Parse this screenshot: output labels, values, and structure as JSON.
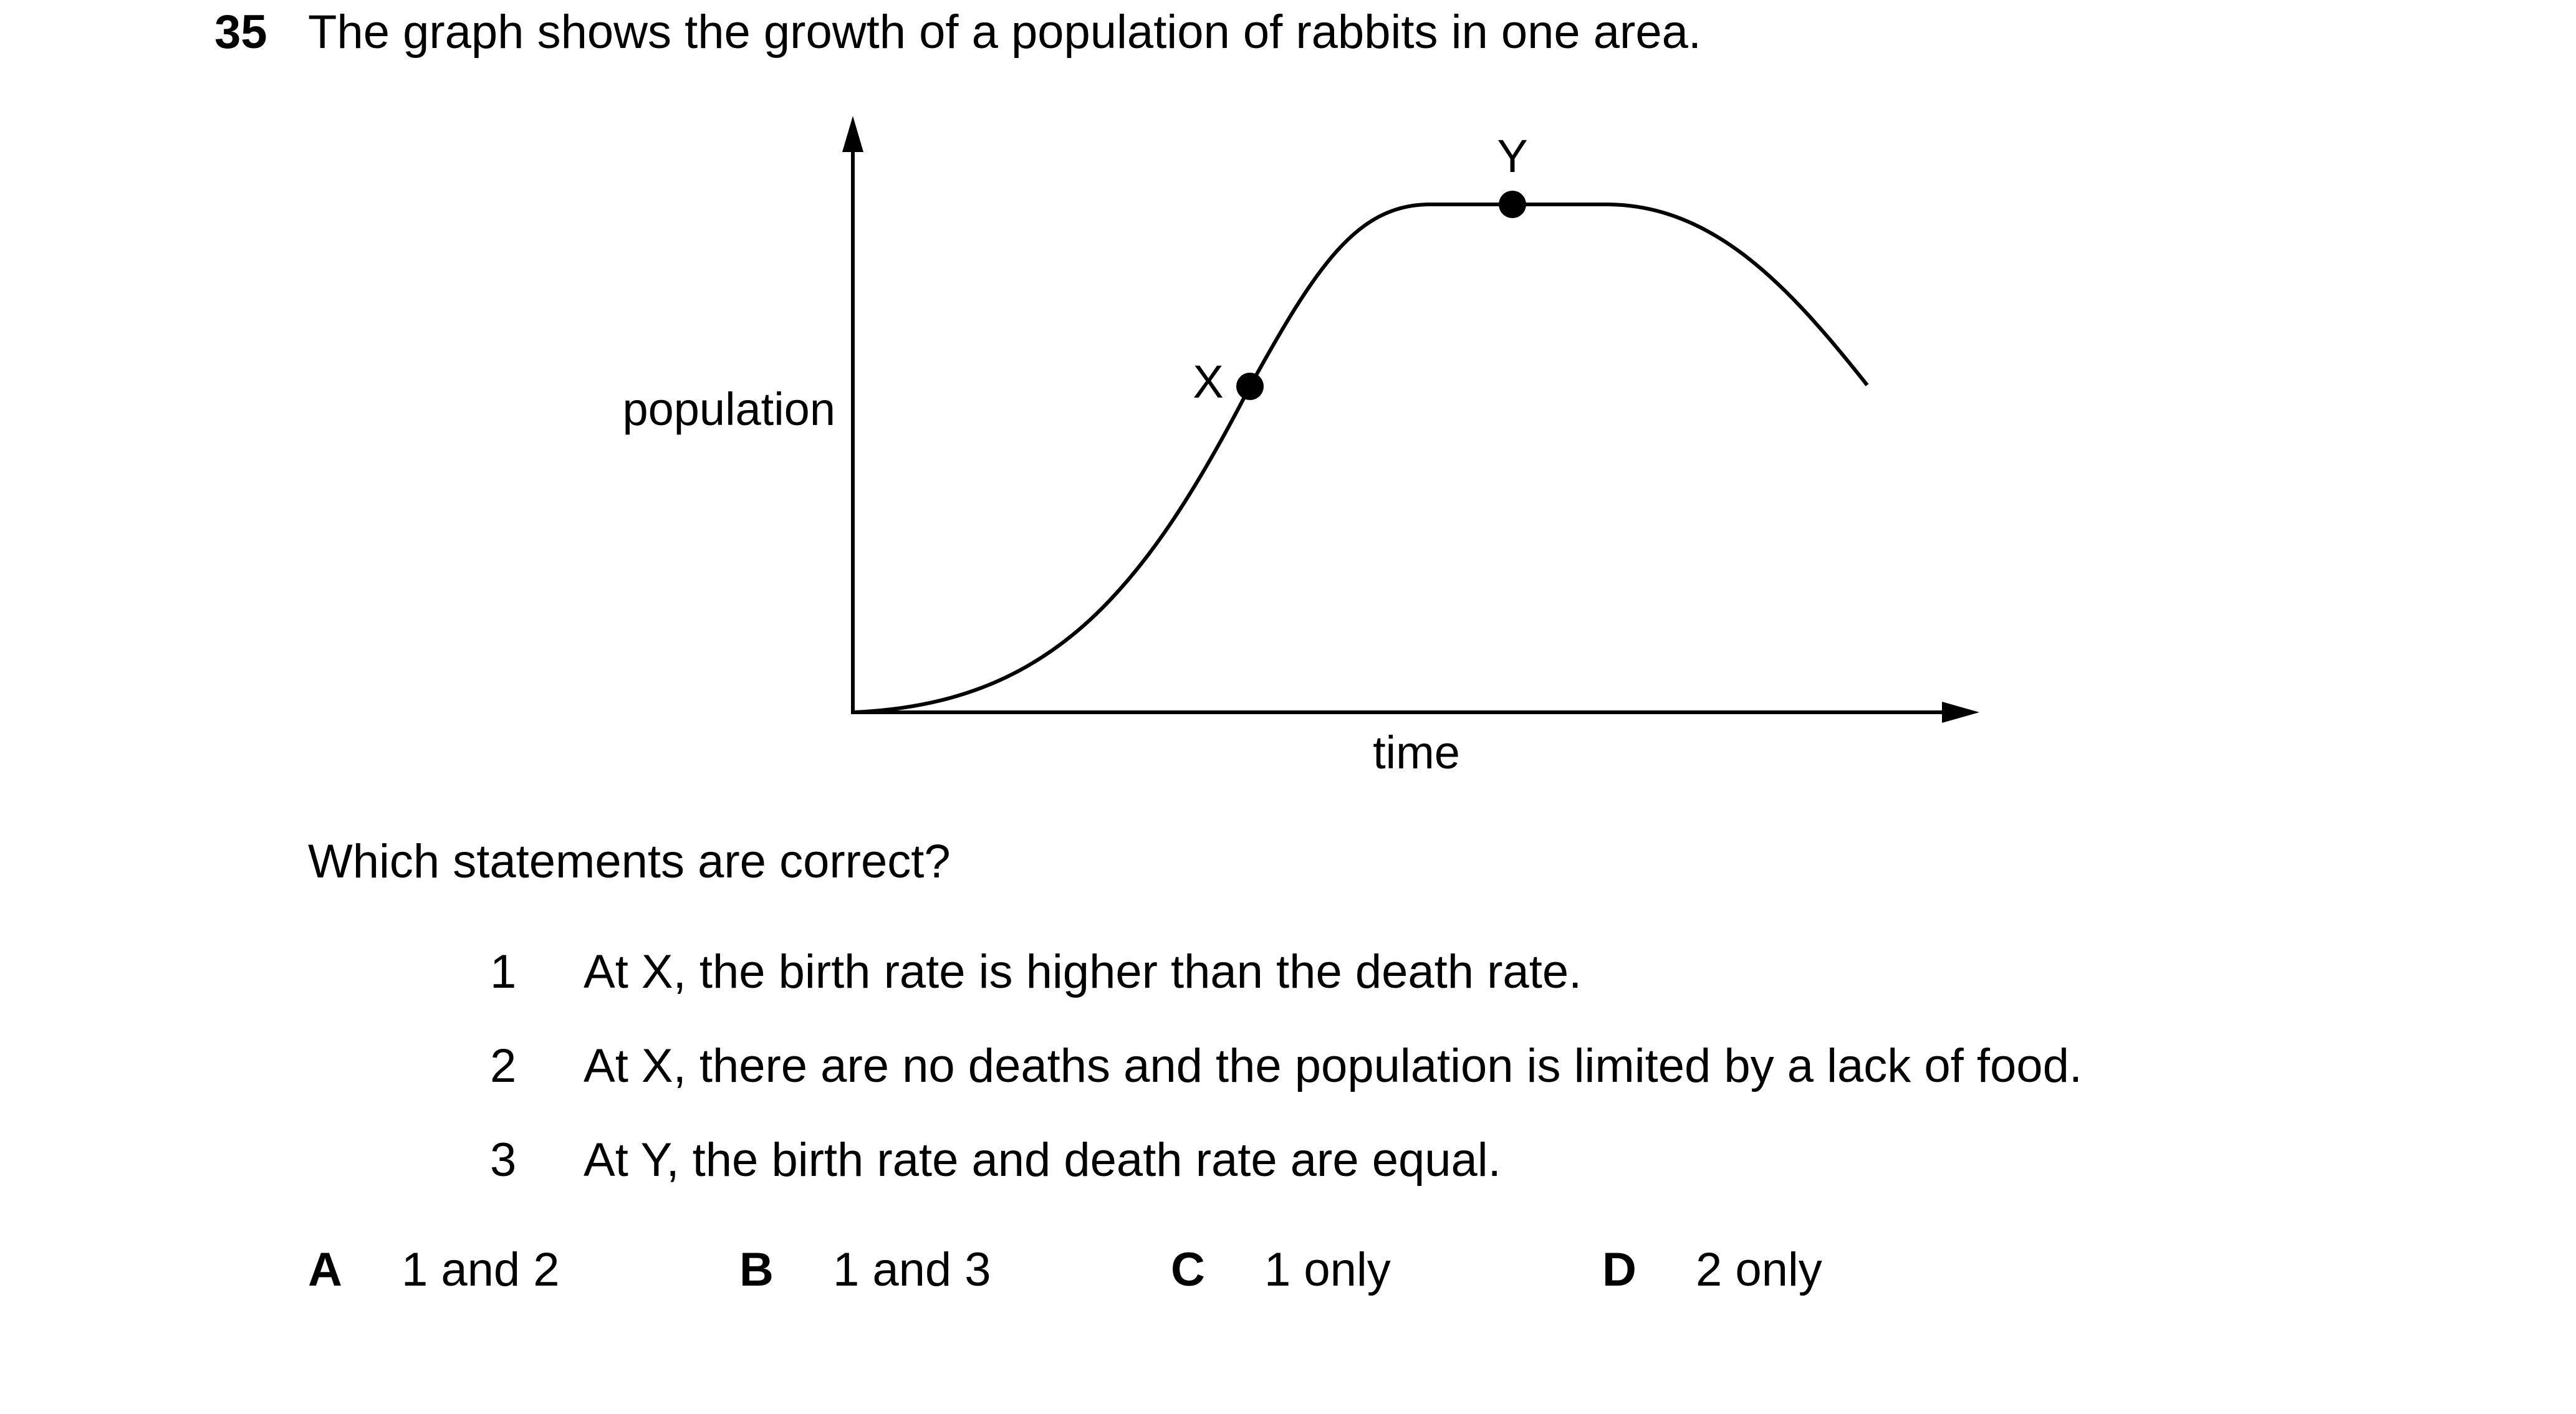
{
  "question": {
    "number": "35",
    "stem": "The graph shows the growth of a population of rabbits in one area."
  },
  "graph": {
    "y_axis_label": "population",
    "x_axis_label": "time",
    "point_x_label": "X",
    "point_y_label": "Y"
  },
  "prompt": "Which statements are correct?",
  "statements": [
    {
      "number": "1",
      "text": "At X, the birth rate is higher than the death rate."
    },
    {
      "number": "2",
      "text": "At X, there are no deaths and the population is limited by a lack of food."
    },
    {
      "number": "3",
      "text": "At Y, the birth rate and death rate are equal."
    }
  ],
  "options": [
    {
      "letter": "A",
      "text": "1 and 2"
    },
    {
      "letter": "B",
      "text": "1 and 3"
    },
    {
      "letter": "C",
      "text": "1 only"
    },
    {
      "letter": "D",
      "text": "2 only"
    }
  ]
}
